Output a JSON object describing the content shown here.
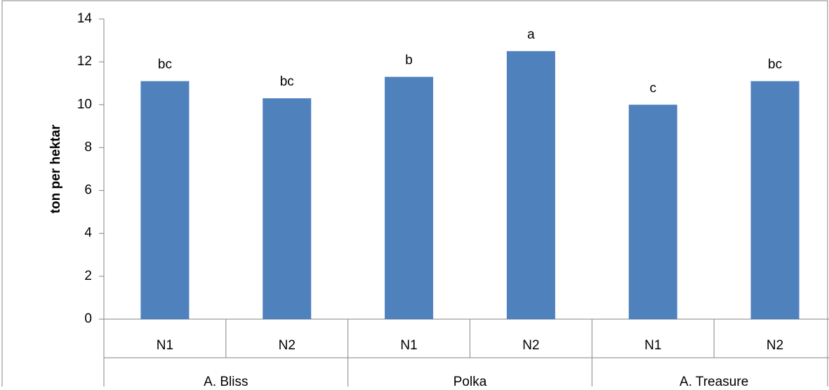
{
  "chart_data": {
    "type": "bar",
    "title": "",
    "xlabel": "",
    "ylabel": "ton per hektar",
    "ylim": [
      0,
      14
    ],
    "y_ticks": [
      "0",
      "2",
      "4",
      "6",
      "8",
      "10",
      "12",
      "14"
    ],
    "grid": false,
    "legend": "none",
    "bar_color": "#4f81bd",
    "groups": [
      {
        "label": "A. Bliss",
        "bars": [
          {
            "category": "N1",
            "value": 11.1,
            "letter": "bc"
          },
          {
            "category": "N2",
            "value": 10.3,
            "letter": "bc"
          }
        ]
      },
      {
        "label": "Polka",
        "bars": [
          {
            "category": "N1",
            "value": 11.3,
            "letter": "b"
          },
          {
            "category": "N2",
            "value": 12.5,
            "letter": "a"
          }
        ]
      },
      {
        "label": "A. Treasure",
        "bars": [
          {
            "category": "N1",
            "value": 10.0,
            "letter": "c"
          },
          {
            "category": "N2",
            "value": 11.1,
            "letter": "bc"
          }
        ]
      }
    ]
  }
}
